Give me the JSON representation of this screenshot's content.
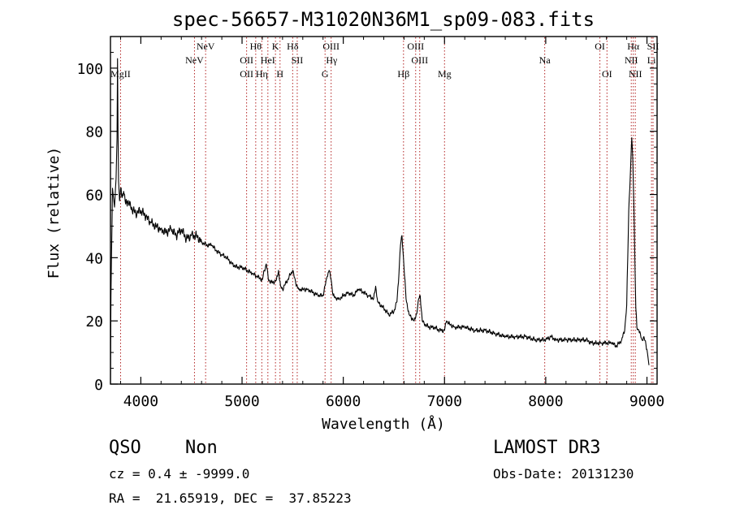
{
  "chart_data": {
    "type": "line",
    "title": "spec-56657-M31020N36M1_sp09-083.fits",
    "xlabel": "Wavelength (Å)",
    "ylabel": "Flux (relative)",
    "xlim": [
      3700,
      9100
    ],
    "ylim": [
      0,
      110
    ],
    "x_ticks": [
      4000,
      5000,
      6000,
      7000,
      8000,
      9000
    ],
    "y_ticks": [
      0,
      20,
      40,
      60,
      80,
      100
    ],
    "grid": false,
    "line_color": "#000000",
    "marker_color": "#b22222",
    "spectrum": {
      "x": [
        3700,
        3705,
        3720,
        3740,
        3755,
        3765,
        3770,
        3775,
        3780,
        3790,
        3800,
        3815,
        3830,
        3850,
        3870,
        3900,
        3950,
        4000,
        4050,
        4100,
        4150,
        4200,
        4250,
        4300,
        4350,
        4400,
        4450,
        4500,
        4550,
        4600,
        4650,
        4700,
        4750,
        4800,
        4850,
        4900,
        4950,
        5000,
        5050,
        5100,
        5150,
        5200,
        5220,
        5240,
        5260,
        5300,
        5340,
        5360,
        5380,
        5400,
        5450,
        5500,
        5530,
        5560,
        5600,
        5650,
        5700,
        5750,
        5800,
        5840,
        5860,
        5880,
        5900,
        5930,
        5960,
        6000,
        6050,
        6100,
        6150,
        6200,
        6250,
        6300,
        6320,
        6340,
        6400,
        6450,
        6500,
        6530,
        6550,
        6565,
        6580,
        6600,
        6620,
        6650,
        6700,
        6730,
        6745,
        6760,
        6780,
        6800,
        6850,
        6900,
        6950,
        7000,
        7020,
        7050,
        7100,
        7150,
        7200,
        7300,
        7400,
        7500,
        7600,
        7700,
        7800,
        7900,
        8000,
        8050,
        8100,
        8200,
        8300,
        8400,
        8450,
        8500,
        8550,
        8600,
        8650,
        8700,
        8750,
        8780,
        8800,
        8820,
        8840,
        8850,
        8860,
        8870,
        8880,
        8890,
        8900,
        8920,
        8950,
        8970,
        9000,
        9020
      ],
      "y": [
        0,
        28,
        62,
        56,
        65,
        78,
        103,
        80,
        64,
        58,
        62,
        59,
        61,
        57,
        58,
        56,
        54,
        55,
        53,
        51,
        50,
        49,
        48,
        49,
        47,
        49,
        46,
        47,
        47,
        45,
        44,
        44,
        42,
        41,
        40,
        38,
        37,
        37,
        36,
        35,
        34,
        33,
        36,
        38,
        33,
        32,
        33,
        36,
        31,
        30,
        33,
        36,
        32,
        30,
        30,
        30,
        29,
        28,
        28,
        34,
        36,
        33,
        28,
        27,
        27,
        28,
        29,
        28,
        30,
        29,
        28,
        27,
        31,
        26,
        24,
        22,
        23,
        26,
        35,
        44,
        47,
        37,
        27,
        22,
        20,
        23,
        27,
        28,
        20,
        19,
        18,
        18,
        17,
        17,
        20,
        19,
        18,
        18,
        18,
        17,
        17,
        16,
        15,
        15,
        15,
        14,
        14,
        15,
        14,
        14,
        14,
        14,
        13,
        13,
        13,
        13,
        13,
        12,
        14,
        17,
        25,
        55,
        70,
        78,
        71,
        58,
        40,
        24,
        18,
        17,
        14,
        15,
        11,
        6
      ]
    },
    "lines": [
      {
        "label": "MgII",
        "x": 3800,
        "row": 3
      },
      {
        "label": "NeV",
        "x": 4530,
        "row": 2
      },
      {
        "label": "NeV",
        "x": 4640,
        "row": 1
      },
      {
        "label": "OII",
        "x": 5045,
        "row": 2
      },
      {
        "label": "OII",
        "x": 5045,
        "row": 3
      },
      {
        "label": "Hθ",
        "x": 5135,
        "row": 1
      },
      {
        "label": "Hη",
        "x": 5195,
        "row": 3
      },
      {
        "label": "HeI",
        "x": 5255,
        "row": 2
      },
      {
        "label": "K",
        "x": 5330,
        "row": 1
      },
      {
        "label": "H",
        "x": 5375,
        "row": 3
      },
      {
        "label": "Hδ",
        "x": 5500,
        "row": 1
      },
      {
        "label": "SII",
        "x": 5545,
        "row": 2
      },
      {
        "label": "G",
        "x": 5820,
        "row": 3
      },
      {
        "label": "OIII",
        "x": 5880,
        "row": 1
      },
      {
        "label": "Hγ",
        "x": 5885,
        "row": 2
      },
      {
        "label": "Hβ",
        "x": 6595,
        "row": 3
      },
      {
        "label": "OIII",
        "x": 6715,
        "row": 1
      },
      {
        "label": "OIII",
        "x": 6755,
        "row": 2
      },
      {
        "label": "Mg",
        "x": 7000,
        "row": 3
      },
      {
        "label": "Na",
        "x": 7990,
        "row": 2
      },
      {
        "label": "OI",
        "x": 8535,
        "row": 1
      },
      {
        "label": "OI",
        "x": 8605,
        "row": 3
      },
      {
        "label": "Hα",
        "x": 8865,
        "row": 1
      },
      {
        "label": "NII",
        "x": 8845,
        "row": 2
      },
      {
        "label": "NII",
        "x": 8885,
        "row": 3
      },
      {
        "label": "SII",
        "x": 9060,
        "row": 1
      },
      {
        "label": "Li",
        "x": 9045,
        "row": 2
      }
    ]
  },
  "footer": {
    "class_label": "QSO",
    "subclass_label": "Non",
    "cz_text": "cz = 0.4 ± -9999.0",
    "coord_text": "RA =  21.65919, DEC =  37.85223",
    "survey_label": "LAMOST DR3",
    "obs_date_text": "Obs-Date: 20131230"
  }
}
